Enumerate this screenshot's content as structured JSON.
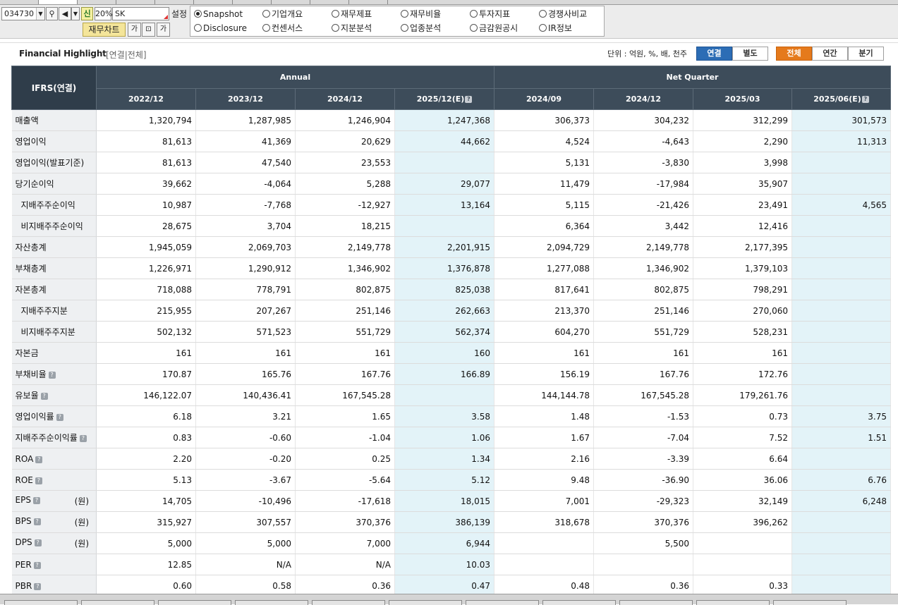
{
  "toolbar": {
    "stock_code": "034730",
    "new_label": "신",
    "percent": "20%",
    "stock_name": "SK",
    "setting_label": "설정",
    "chart_button": "재무차트",
    "radios": [
      {
        "label": "Snapshot",
        "selected": true
      },
      {
        "label": "기업개요",
        "selected": false
      },
      {
        "label": "재무제표",
        "selected": false
      },
      {
        "label": "재무비율",
        "selected": false
      },
      {
        "label": "투자지표",
        "selected": false
      },
      {
        "label": "경쟁사비교",
        "selected": false
      },
      {
        "label": "Disclosure",
        "selected": false
      },
      {
        "label": "컨센서스",
        "selected": false
      },
      {
        "label": "지분분석",
        "selected": false
      },
      {
        "label": "업종분석",
        "selected": false
      },
      {
        "label": "금감원공시",
        "selected": false
      },
      {
        "label": "IR정보",
        "selected": false
      }
    ]
  },
  "section": {
    "title": "Financial Highlight",
    "subtitle": "[연결|전체]",
    "unit_text": "단위 : 억원, %, 배, 천주",
    "basis_tabs": [
      "연결",
      "별도"
    ],
    "period_tabs": [
      "전체",
      "연간",
      "분기"
    ]
  },
  "table": {
    "corner": "IFRS(연결)",
    "group_annual": "Annual",
    "group_quarter": "Net Quarter",
    "periods": [
      "2022/12",
      "2023/12",
      "2024/12",
      "2025/12(E)",
      "2024/09",
      "2024/12",
      "2025/03",
      "2025/06(E)"
    ],
    "rows": [
      {
        "label": "매출액",
        "values": [
          "1,320,794",
          "1,287,985",
          "1,246,904",
          "1,247,368",
          "306,373",
          "304,232",
          "312,299",
          "301,573"
        ]
      },
      {
        "label": "영업이익",
        "values": [
          "81,613",
          "41,369",
          "20,629",
          "44,662",
          "4,524",
          "-4,643",
          "2,290",
          "11,313"
        ]
      },
      {
        "label": "영업이익(발표기준)",
        "values": [
          "81,613",
          "47,540",
          "23,553",
          "",
          "5,131",
          "-3,830",
          "3,998",
          ""
        ]
      },
      {
        "label": "당기순이익",
        "values": [
          "39,662",
          "-4,064",
          "5,288",
          "29,077",
          "11,479",
          "-17,984",
          "35,907",
          ""
        ]
      },
      {
        "label": "지배주주순이익",
        "indent": true,
        "values": [
          "10,987",
          "-7,768",
          "-12,927",
          "13,164",
          "5,115",
          "-21,426",
          "23,491",
          "4,565"
        ]
      },
      {
        "label": "비지배주주순이익",
        "indent": true,
        "values": [
          "28,675",
          "3,704",
          "18,215",
          "",
          "6,364",
          "3,442",
          "12,416",
          ""
        ]
      },
      {
        "label": "자산총계",
        "values": [
          "1,945,059",
          "2,069,703",
          "2,149,778",
          "2,201,915",
          "2,094,729",
          "2,149,778",
          "2,177,395",
          ""
        ]
      },
      {
        "label": "부채총계",
        "values": [
          "1,226,971",
          "1,290,912",
          "1,346,902",
          "1,376,878",
          "1,277,088",
          "1,346,902",
          "1,379,103",
          ""
        ]
      },
      {
        "label": "자본총계",
        "values": [
          "718,088",
          "778,791",
          "802,875",
          "825,038",
          "817,641",
          "802,875",
          "798,291",
          ""
        ]
      },
      {
        "label": "지배주주지분",
        "indent": true,
        "values": [
          "215,955",
          "207,267",
          "251,146",
          "262,663",
          "213,370",
          "251,146",
          "270,060",
          ""
        ]
      },
      {
        "label": "비지배주주지분",
        "indent": true,
        "values": [
          "502,132",
          "571,523",
          "551,729",
          "562,374",
          "604,270",
          "551,729",
          "528,231",
          ""
        ]
      },
      {
        "label": "자본금",
        "values": [
          "161",
          "161",
          "161",
          "160",
          "161",
          "161",
          "161",
          ""
        ]
      },
      {
        "label": "부채비율",
        "help": true,
        "values": [
          "170.87",
          "165.76",
          "167.76",
          "166.89",
          "156.19",
          "167.76",
          "172.76",
          ""
        ]
      },
      {
        "label": "유보율",
        "help": true,
        "values": [
          "146,122.07",
          "140,436.41",
          "167,545.28",
          "",
          "144,144.78",
          "167,545.28",
          "179,261.76",
          ""
        ]
      },
      {
        "label": "영업이익률",
        "help": true,
        "values": [
          "6.18",
          "3.21",
          "1.65",
          "3.58",
          "1.48",
          "-1.53",
          "0.73",
          "3.75"
        ]
      },
      {
        "label": "지배주주순이익률",
        "help": true,
        "values": [
          "0.83",
          "-0.60",
          "-1.04",
          "1.06",
          "1.67",
          "-7.04",
          "7.52",
          "1.51"
        ]
      },
      {
        "label": "ROA",
        "help": true,
        "values": [
          "2.20",
          "-0.20",
          "0.25",
          "1.34",
          "2.16",
          "-3.39",
          "6.64",
          ""
        ]
      },
      {
        "label": "ROE",
        "help": true,
        "values": [
          "5.13",
          "-3.67",
          "-5.64",
          "5.12",
          "9.48",
          "-36.90",
          "36.06",
          "6.76"
        ]
      },
      {
        "label": "EPS",
        "help": true,
        "unit": "(원)",
        "values": [
          "14,705",
          "-10,496",
          "-17,618",
          "18,015",
          "7,001",
          "-29,323",
          "32,149",
          "6,248"
        ]
      },
      {
        "label": "BPS",
        "help": true,
        "unit": "(원)",
        "values": [
          "315,927",
          "307,557",
          "370,376",
          "386,139",
          "318,678",
          "370,376",
          "396,262",
          ""
        ]
      },
      {
        "label": "DPS",
        "help": true,
        "unit": "(원)",
        "values": [
          "5,000",
          "5,000",
          "7,000",
          "6,944",
          "",
          "5,500",
          "",
          ""
        ]
      },
      {
        "label": "PER",
        "help": true,
        "values": [
          "12.85",
          "N/A",
          "N/A",
          "10.03",
          "",
          "",
          "",
          ""
        ]
      },
      {
        "label": "PBR",
        "help": true,
        "values": [
          "0.60",
          "0.58",
          "0.36",
          "0.47",
          "0.48",
          "0.36",
          "0.33",
          ""
        ]
      }
    ]
  },
  "colors": {
    "header": "#3d4c5a",
    "negative": "#d21414",
    "estimate": "#e3f3f8",
    "basis_active": "#2c6db5",
    "period_active": "#e57a1c"
  }
}
